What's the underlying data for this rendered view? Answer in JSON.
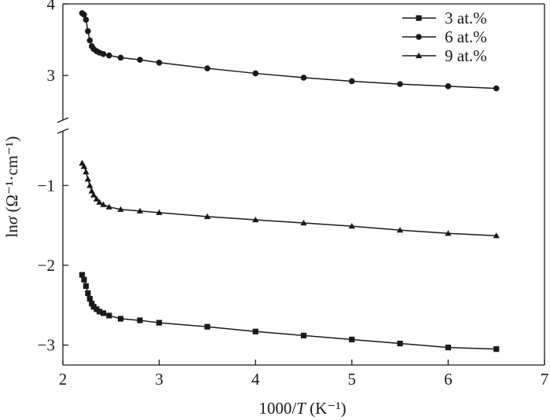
{
  "chart_data": {
    "type": "line",
    "xlabel": "1000/T (K⁻¹)",
    "xlabel_parts": {
      "before": "1000/",
      "italic": "T",
      "after": " (K⁻¹)"
    },
    "ylabel": "lnσ (Ω⁻¹·cm⁻¹)",
    "ylabel_parts": {
      "before": "ln",
      "italic": "σ",
      "after": " (Ω⁻¹·cm⁻¹)"
    },
    "xlim": [
      2,
      7
    ],
    "x_ticks": [
      "2",
      "3",
      "4",
      "5",
      "6",
      "7"
    ],
    "y_axis_broken": true,
    "y_upper_range": [
      2.3,
      4
    ],
    "y_lower_range": [
      -3.25,
      -0.25
    ],
    "y_ticks_upper": [
      "4",
      "3"
    ],
    "y_ticks_lower": [
      "−1",
      "−2",
      "−3"
    ],
    "grid": false,
    "legend_position": "top-right",
    "series": [
      {
        "name": "3 at.%",
        "marker": "square",
        "x": [
          2.2,
          2.22,
          2.24,
          2.26,
          2.28,
          2.3,
          2.32,
          2.35,
          2.38,
          2.42,
          2.48,
          2.6,
          2.8,
          3.0,
          3.5,
          4.0,
          4.5,
          5.0,
          5.5,
          6.0,
          6.5
        ],
        "y": [
          -2.12,
          -2.18,
          -2.26,
          -2.35,
          -2.42,
          -2.48,
          -2.52,
          -2.55,
          -2.58,
          -2.6,
          -2.63,
          -2.67,
          -2.69,
          -2.72,
          -2.77,
          -2.83,
          -2.88,
          -2.93,
          -2.98,
          -3.03,
          -3.05
        ]
      },
      {
        "name": "6 at.%",
        "marker": "circle",
        "x": [
          2.2,
          2.22,
          2.24,
          2.26,
          2.28,
          2.3,
          2.32,
          2.35,
          2.38,
          2.42,
          2.48,
          2.6,
          2.8,
          3.0,
          3.5,
          4.0,
          4.5,
          5.0,
          5.5,
          6.0,
          6.5
        ],
        "y": [
          3.87,
          3.85,
          3.78,
          3.62,
          3.49,
          3.41,
          3.37,
          3.34,
          3.32,
          3.3,
          3.28,
          3.25,
          3.22,
          3.18,
          3.1,
          3.03,
          2.97,
          2.92,
          2.88,
          2.85,
          2.82
        ]
      },
      {
        "name": "9 at.%",
        "marker": "triangle",
        "x": [
          2.2,
          2.22,
          2.24,
          2.26,
          2.28,
          2.3,
          2.32,
          2.35,
          2.38,
          2.42,
          2.48,
          2.6,
          2.8,
          3.0,
          3.5,
          4.0,
          4.5,
          5.0,
          5.5,
          6.0,
          6.5
        ],
        "y": [
          -0.72,
          -0.76,
          -0.83,
          -0.92,
          -1.0,
          -1.07,
          -1.12,
          -1.17,
          -1.21,
          -1.24,
          -1.27,
          -1.3,
          -1.32,
          -1.34,
          -1.39,
          -1.43,
          -1.47,
          -1.51,
          -1.56,
          -1.6,
          -1.63
        ]
      }
    ]
  }
}
